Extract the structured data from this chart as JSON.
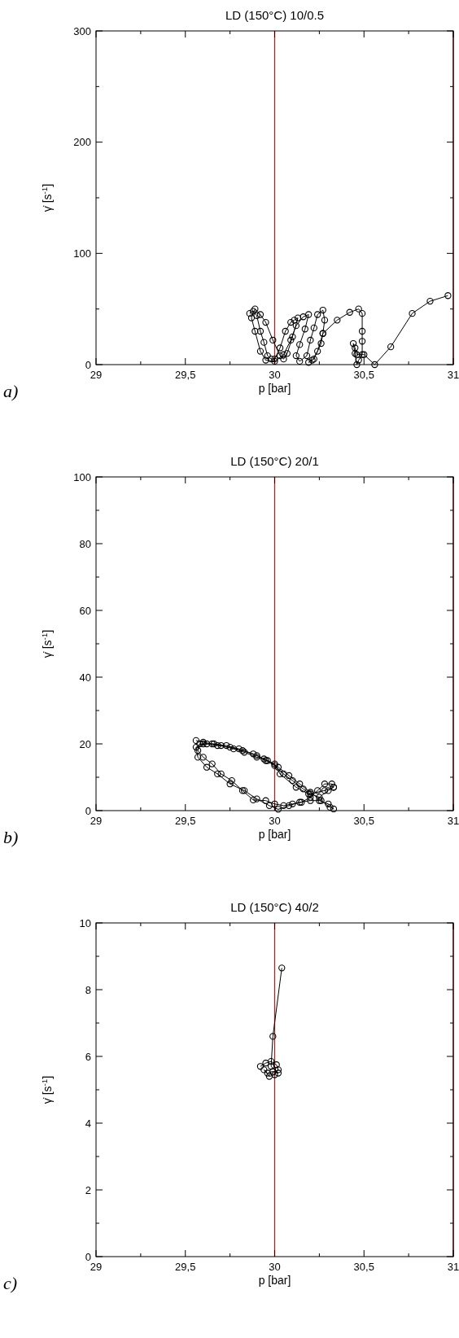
{
  "chart_data": [
    {
      "type": "line",
      "title": "LD (150°C)  10/0.5",
      "xlabel": "p [bar]",
      "ylabel": "γ̇ [s$^{-1}$]",
      "annotations": [
        "a)"
      ],
      "marker": "circle",
      "grid": false,
      "xlim": [
        29,
        31
      ],
      "ylim": [
        0,
        300
      ],
      "xticks": [
        29,
        {
          "value": 29.25,
          "label": null
        },
        {
          "value": 29.5,
          "label": "29,5"
        },
        {
          "value": 29.75,
          "label": null
        },
        30,
        {
          "value": 30.25,
          "label": null
        },
        {
          "value": 30.5,
          "label": "30,5"
        },
        {
          "value": 30.75,
          "label": null
        },
        31
      ],
      "yticks": [
        0,
        {
          "value": 50,
          "label": null
        },
        100,
        {
          "value": 150,
          "label": null
        },
        200,
        {
          "value": 250,
          "label": null
        },
        300
      ],
      "ref_lines": [
        {
          "axis": "x",
          "value": 30,
          "color": "#ff0000"
        },
        {
          "axis": "x",
          "value": 31,
          "color": "#8b1a1a"
        }
      ],
      "series": [
        {
          "color": "#000000",
          "x": [
            29.86,
            29.88,
            29.9,
            29.92,
            29.94,
            29.96,
            29.98,
            30.0,
            30.03,
            30.06,
            30.09,
            30.11,
            30.13,
            30.1,
            30.07,
            30.05,
            30.03,
            29.99,
            29.95,
            29.92,
            29.89,
            29.87,
            29.89,
            29.92,
            29.95,
            30.0,
            30.05,
            30.09,
            30.12,
            30.16,
            30.19,
            30.17,
            30.14,
            30.12,
            30.14,
            30.18,
            30.2,
            30.22,
            30.24,
            30.27,
            30.28,
            30.27,
            30.24,
            30.21,
            30.19,
            30.22,
            30.26,
            30.27,
            30.35,
            30.42,
            30.47,
            30.49,
            30.49,
            30.49,
            30.49,
            30.47,
            30.46,
            30.45,
            30.44,
            30.45,
            30.46,
            30.5,
            30.56,
            30.65,
            30.77,
            30.87,
            30.97
          ],
          "values": [
            46,
            48,
            44,
            30,
            20,
            8,
            5,
            5,
            15,
            30,
            38,
            40,
            42,
            25,
            10,
            5,
            8,
            22,
            38,
            45,
            50,
            42,
            30,
            12,
            4,
            3,
            9,
            22,
            35,
            43,
            45,
            32,
            18,
            8,
            3,
            8,
            22,
            33,
            45,
            49,
            40,
            28,
            12,
            4,
            2,
            5,
            19,
            28,
            40,
            47,
            50,
            46,
            30,
            21,
            9,
            4,
            0,
            10,
            19,
            15,
            9,
            9,
            0,
            16,
            46,
            57,
            62
          ]
        }
      ]
    },
    {
      "type": "line",
      "title": "LD (150°C)  20/1",
      "xlabel": "p [bar]",
      "ylabel": "γ̇ [s$^{-1}$]",
      "annotations": [
        "b)"
      ],
      "marker": "circle",
      "grid": false,
      "xlim": [
        29,
        31
      ],
      "ylim": [
        0,
        100
      ],
      "xticks": [
        29,
        {
          "value": 29.25,
          "label": null
        },
        {
          "value": 29.5,
          "label": "29,5"
        },
        {
          "value": 29.75,
          "label": null
        },
        30,
        {
          "value": 30.25,
          "label": null
        },
        {
          "value": 30.5,
          "label": "30,5"
        },
        {
          "value": 30.75,
          "label": null
        },
        31
      ],
      "yticks": [
        0,
        {
          "value": 10,
          "label": null
        },
        20,
        {
          "value": 30,
          "label": null
        },
        40,
        {
          "value": 50,
          "label": null
        },
        60,
        {
          "value": 70,
          "label": null
        },
        80,
        {
          "value": 90,
          "label": null
        },
        100
      ],
      "ref_lines": [
        {
          "axis": "x",
          "value": 30,
          "color": "#ff0000"
        },
        {
          "axis": "x",
          "value": 31,
          "color": "#8b1a1a"
        }
      ],
      "series": [
        {
          "color": "#000000",
          "x": [
            29.56,
            29.6,
            29.65,
            29.7,
            29.77,
            29.83,
            29.9,
            29.95,
            30.0,
            30.05,
            30.1,
            30.16,
            30.2,
            30.25,
            30.3,
            30.33,
            30.32,
            30.28,
            30.24,
            30.2,
            30.15,
            30.1,
            30.05,
            30.0,
            29.95,
            29.88,
            29.82,
            29.76,
            29.7,
            29.65,
            29.6,
            29.57,
            29.58,
            29.62,
            29.68,
            29.75,
            29.82,
            29.9,
            29.96,
            30.02,
            30.08,
            30.14,
            30.2,
            30.26,
            30.31,
            30.33,
            30.3,
            30.25,
            30.2,
            30.14,
            30.08,
            30.02,
            29.97,
            29.9,
            29.83,
            29.75,
            29.68,
            29.62,
            29.57,
            29.56,
            29.6,
            29.66,
            29.73,
            29.8,
            29.88,
            29.94,
            30.0,
            30.03,
            30.12,
            30.19,
            30.28,
            30.33
          ],
          "values": [
            21,
            20.5,
            20,
            19.5,
            18.5,
            17.5,
            16,
            15,
            13.5,
            11,
            9,
            6.5,
            5,
            4,
            6,
            7,
            8,
            8,
            6,
            4,
            2.5,
            2,
            1.5,
            2,
            3,
            3.2,
            6,
            9,
            11,
            14,
            16,
            18,
            20,
            20,
            19.5,
            19,
            18,
            16.5,
            15,
            13,
            10.5,
            8,
            5.5,
            3,
            1,
            0.5,
            2,
            3,
            3,
            2.5,
            1.5,
            0.4,
            1.5,
            3.5,
            6,
            8,
            11,
            13,
            16,
            19,
            20,
            20,
            19.5,
            18.5,
            17,
            15.5,
            14,
            11,
            7,
            5,
            6,
            7
          ]
        }
      ]
    },
    {
      "type": "line",
      "title": "LD (150°C)  40/2",
      "xlabel": "p [bar]",
      "ylabel": "γ̇ [s$^{-1}$]",
      "annotations": [
        "c)"
      ],
      "marker": "circle",
      "grid": false,
      "xlim": [
        29,
        31
      ],
      "ylim": [
        0,
        10
      ],
      "xticks": [
        29,
        {
          "value": 29.25,
          "label": null
        },
        {
          "value": 29.5,
          "label": "29,5"
        },
        {
          "value": 29.75,
          "label": null
        },
        30,
        {
          "value": 30.25,
          "label": null
        },
        {
          "value": 30.5,
          "label": "30,5"
        },
        {
          "value": 30.75,
          "label": null
        },
        31
      ],
      "yticks": [
        0,
        {
          "value": 1,
          "label": null
        },
        2,
        {
          "value": 3,
          "label": null
        },
        4,
        {
          "value": 5,
          "label": null
        },
        6,
        {
          "value": 7,
          "label": null
        },
        8,
        {
          "value": 9,
          "label": null
        },
        10
      ],
      "ref_lines": [
        {
          "axis": "x",
          "value": 30,
          "color": "#ff0000"
        },
        {
          "axis": "x",
          "value": 31,
          "color": "#8b1a1a"
        }
      ],
      "series": [
        {
          "color": "#000000",
          "x": [
            29.92,
            29.95,
            29.98,
            30.01,
            30.02,
            30.0,
            29.97,
            29.94,
            29.96,
            29.99,
            30.02,
            29.98,
            29.99,
            30.04
          ],
          "values": [
            5.7,
            5.8,
            5.85,
            5.75,
            5.6,
            5.45,
            5.4,
            5.6,
            5.5,
            5.55,
            5.5,
            5.7,
            6.6,
            8.65
          ]
        }
      ]
    }
  ]
}
